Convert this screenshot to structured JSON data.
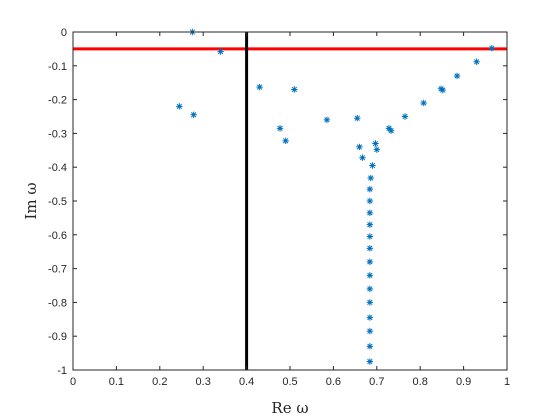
{
  "chart_data": {
    "type": "scatter",
    "xlabel": "Re ω",
    "ylabel": "Im ω",
    "xlim": [
      0,
      1
    ],
    "ylim": [
      -1,
      0
    ],
    "xticks": [
      0,
      0.1,
      0.2,
      0.3,
      0.4,
      0.5,
      0.6,
      0.7,
      0.8,
      0.9,
      1
    ],
    "xtick_labels": [
      "0",
      "0.1",
      "0.2",
      "0.3",
      "0.4",
      "0.5",
      "0.6",
      "0.7",
      "0.8",
      "0.9",
      "1"
    ],
    "yticks": [
      0,
      -0.1,
      -0.2,
      -0.3,
      -0.4,
      -0.5,
      -0.6,
      -0.7,
      -0.8,
      -0.9,
      -1
    ],
    "ytick_labels": [
      "0",
      "-0.1",
      "-0.2",
      "-0.3",
      "-0.4",
      "-0.5",
      "-0.6",
      "-0.7",
      "-0.8",
      "-0.9",
      "-1"
    ],
    "grid": false,
    "marker_color": "#0072BD",
    "points": [
      {
        "x": 0.275,
        "y": 0.0
      },
      {
        "x": 0.245,
        "y": -0.22
      },
      {
        "x": 0.278,
        "y": -0.245
      },
      {
        "x": 0.34,
        "y": -0.058
      },
      {
        "x": 0.43,
        "y": -0.163
      },
      {
        "x": 0.51,
        "y": -0.17
      },
      {
        "x": 0.477,
        "y": -0.285
      },
      {
        "x": 0.49,
        "y": -0.322
      },
      {
        "x": 0.585,
        "y": -0.26
      },
      {
        "x": 0.655,
        "y": -0.255
      },
      {
        "x": 0.66,
        "y": -0.34
      },
      {
        "x": 0.667,
        "y": -0.372
      },
      {
        "x": 0.697,
        "y": -0.33
      },
      {
        "x": 0.7,
        "y": -0.348
      },
      {
        "x": 0.728,
        "y": -0.285
      },
      {
        "x": 0.733,
        "y": -0.292
      },
      {
        "x": 0.765,
        "y": -0.25
      },
      {
        "x": 0.808,
        "y": -0.21
      },
      {
        "x": 0.848,
        "y": -0.168
      },
      {
        "x": 0.852,
        "y": -0.172
      },
      {
        "x": 0.885,
        "y": -0.13
      },
      {
        "x": 0.93,
        "y": -0.088
      },
      {
        "x": 0.965,
        "y": -0.048
      },
      {
        "x": 0.69,
        "y": -0.395
      },
      {
        "x": 0.686,
        "y": -0.432
      },
      {
        "x": 0.684,
        "y": -0.465
      },
      {
        "x": 0.684,
        "y": -0.5
      },
      {
        "x": 0.684,
        "y": -0.535
      },
      {
        "x": 0.684,
        "y": -0.57
      },
      {
        "x": 0.684,
        "y": -0.605
      },
      {
        "x": 0.684,
        "y": -0.64
      },
      {
        "x": 0.684,
        "y": -0.68
      },
      {
        "x": 0.684,
        "y": -0.72
      },
      {
        "x": 0.684,
        "y": -0.76
      },
      {
        "x": 0.684,
        "y": -0.8
      },
      {
        "x": 0.684,
        "y": -0.845
      },
      {
        "x": 0.684,
        "y": -0.885
      },
      {
        "x": 0.684,
        "y": -0.93
      },
      {
        "x": 0.684,
        "y": -0.975
      }
    ],
    "reference_lines": [
      {
        "orientation": "horizontal",
        "value": -0.05,
        "color": "#FF0000"
      },
      {
        "orientation": "vertical",
        "value": 0.4,
        "color": "#000000"
      }
    ]
  }
}
